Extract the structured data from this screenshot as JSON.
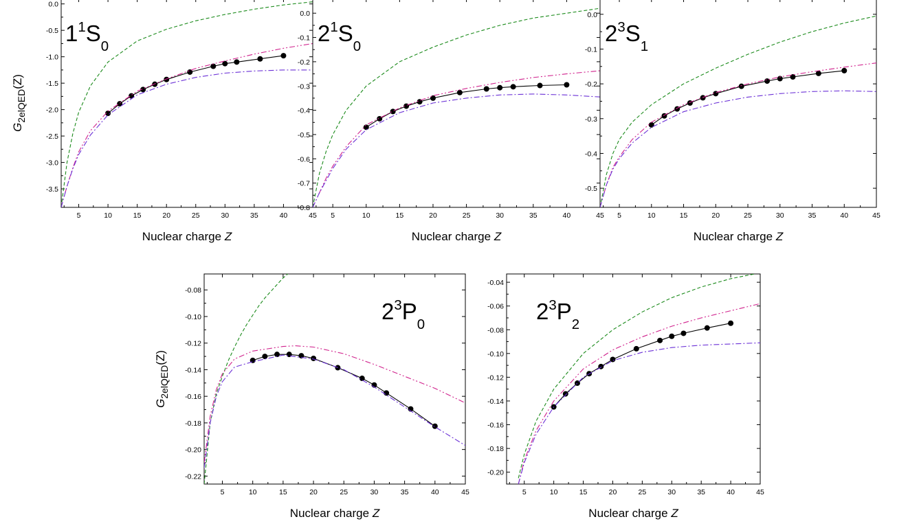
{
  "figure": {
    "xlabel_text": "Nuclear charge",
    "xlabel_var": "Z",
    "ylabel_sym": "G",
    "ylabel_sub": "2elQED",
    "ylabel_arg": "(Z)"
  },
  "chart_data": [
    {
      "type": "line",
      "state": {
        "lead": "1",
        "sup": "1",
        "letter": "S",
        "sub": "0"
      },
      "xlim": [
        2,
        45
      ],
      "ylim": [
        -3.85,
        0.1
      ],
      "xticks": [
        5,
        10,
        15,
        20,
        25,
        30,
        35,
        40,
        45
      ],
      "xtick_labels": [
        "5",
        "10",
        "15",
        "20",
        "25",
        "30",
        "35",
        "40",
        "45"
      ],
      "yticks": [
        0.0,
        -0.5,
        -1.0,
        -1.5,
        -2.0,
        -2.5,
        -3.0,
        -3.5
      ],
      "ytick_labels": [
        "0.0",
        "-0.5",
        "-1.0",
        "-1.5",
        "-2.0",
        "-2.5",
        "-3.0",
        "-3.5"
      ],
      "has_ylabel": true,
      "series": [
        {
          "style": "solid",
          "color": "#000000",
          "markers": true,
          "x": [
            10,
            12,
            14,
            16,
            18,
            20,
            24,
            28,
            30,
            32,
            36,
            40
          ],
          "y": [
            -2.07,
            -1.89,
            -1.74,
            -1.62,
            -1.52,
            -1.43,
            -1.29,
            -1.18,
            -1.13,
            -1.1,
            -1.04,
            -0.98
          ]
        },
        {
          "style": "dashed",
          "color": "#1a8a1a",
          "x": [
            2,
            3,
            4,
            5,
            7,
            10,
            15,
            20,
            25,
            30,
            35,
            40,
            45
          ],
          "y": [
            -3.85,
            -3.0,
            -2.45,
            -2.05,
            -1.55,
            -1.1,
            -0.7,
            -0.48,
            -0.32,
            -0.2,
            -0.1,
            -0.02,
            0.04
          ]
        },
        {
          "style": "dashdotdot",
          "color": "#d0208c",
          "x": [
            2,
            3,
            4,
            5,
            7,
            10,
            15,
            20,
            25,
            30,
            35,
            40,
            45
          ],
          "y": [
            -3.85,
            -3.45,
            -3.1,
            -2.8,
            -2.4,
            -2.03,
            -1.65,
            -1.42,
            -1.22,
            -1.08,
            -0.95,
            -0.84,
            -0.75
          ]
        },
        {
          "style": "dashdot",
          "color": "#6a2fd6",
          "x": [
            2,
            3,
            4,
            5,
            7,
            10,
            15,
            20,
            25,
            30,
            35,
            40,
            45
          ],
          "y": [
            -3.85,
            -3.45,
            -3.12,
            -2.85,
            -2.48,
            -2.1,
            -1.72,
            -1.52,
            -1.39,
            -1.31,
            -1.27,
            -1.25,
            -1.25
          ]
        }
      ]
    },
    {
      "type": "line",
      "state": {
        "lead": "2",
        "sup": "1",
        "letter": "S",
        "sub": "0"
      },
      "xlim": [
        2,
        45
      ],
      "ylim": [
        -0.8,
        0.06
      ],
      "xticks": [
        5,
        10,
        15,
        20,
        25,
        30,
        35,
        40,
        45
      ],
      "xtick_labels": [
        "5",
        "10",
        "15",
        "20",
        "25",
        "30",
        "35",
        "40",
        "45"
      ],
      "yticks": [
        0.0,
        -0.1,
        -0.2,
        -0.3,
        -0.4,
        -0.5,
        -0.6,
        -0.7,
        -0.8
      ],
      "ytick_labels": [
        "0.0",
        "-0.1",
        "-0.2",
        "-0.3",
        "-0.4",
        "-0.5",
        "-0.6",
        "-0.7",
        "-0.8"
      ],
      "has_ylabel": false,
      "series": [
        {
          "style": "solid",
          "color": "#000000",
          "markers": true,
          "x": [
            10,
            12,
            14,
            16,
            18,
            20,
            24,
            28,
            30,
            32,
            36,
            40
          ],
          "y": [
            -0.47,
            -0.435,
            -0.405,
            -0.383,
            -0.365,
            -0.35,
            -0.327,
            -0.312,
            -0.307,
            -0.303,
            -0.298,
            -0.295
          ]
        },
        {
          "style": "dashed",
          "color": "#1a8a1a",
          "x": [
            2,
            3,
            4,
            5,
            7,
            10,
            15,
            20,
            25,
            30,
            35,
            40,
            45
          ],
          "y": [
            -0.8,
            -0.66,
            -0.57,
            -0.5,
            -0.4,
            -0.3,
            -0.2,
            -0.14,
            -0.09,
            -0.05,
            -0.02,
            0.0,
            0.02
          ]
        },
        {
          "style": "dashdotdot",
          "color": "#d0208c",
          "x": [
            2,
            3,
            4,
            5,
            7,
            10,
            15,
            20,
            25,
            30,
            35,
            40,
            45
          ],
          "y": [
            -0.8,
            -0.74,
            -0.68,
            -0.63,
            -0.55,
            -0.46,
            -0.39,
            -0.34,
            -0.31,
            -0.285,
            -0.265,
            -0.25,
            -0.237
          ]
        },
        {
          "style": "dashdot",
          "color": "#6a2fd6",
          "x": [
            2,
            3,
            4,
            5,
            7,
            10,
            15,
            20,
            25,
            30,
            35,
            40,
            45
          ],
          "y": [
            -0.8,
            -0.74,
            -0.69,
            -0.64,
            -0.56,
            -0.48,
            -0.41,
            -0.37,
            -0.35,
            -0.337,
            -0.333,
            -0.337,
            -0.345
          ]
        }
      ]
    },
    {
      "type": "line",
      "state": {
        "lead": "2",
        "sup": "3",
        "letter": "S",
        "sub": "1"
      },
      "xlim": [
        2,
        45
      ],
      "ylim": [
        -0.555,
        0.045
      ],
      "xticks": [
        5,
        10,
        15,
        20,
        25,
        30,
        35,
        40,
        45
      ],
      "xtick_labels": [
        "5",
        "10",
        "15",
        "20",
        "25",
        "30",
        "35",
        "40",
        "45"
      ],
      "yticks": [
        0.0,
        -0.1,
        -0.2,
        -0.3,
        -0.4,
        -0.5
      ],
      "ytick_labels": [
        "0.0",
        "-0.1",
        "-0.2",
        "-0.3",
        "-0.4",
        "-0.5"
      ],
      "has_ylabel": false,
      "series": [
        {
          "style": "solid",
          "color": "#000000",
          "markers": true,
          "x": [
            10,
            12,
            14,
            16,
            18,
            20,
            24,
            28,
            30,
            32,
            36,
            40
          ],
          "y": [
            -0.318,
            -0.292,
            -0.272,
            -0.255,
            -0.24,
            -0.228,
            -0.207,
            -0.192,
            -0.185,
            -0.18,
            -0.17,
            -0.162
          ]
        },
        {
          "style": "dashed",
          "color": "#1a8a1a",
          "x": [
            2,
            3,
            4,
            5,
            7,
            10,
            15,
            20,
            25,
            30,
            35,
            40,
            45
          ],
          "y": [
            -0.555,
            -0.46,
            -0.4,
            -0.36,
            -0.31,
            -0.26,
            -0.2,
            -0.155,
            -0.115,
            -0.08,
            -0.05,
            -0.025,
            -0.005
          ]
        },
        {
          "style": "dashdotdot",
          "color": "#d0208c",
          "x": [
            2,
            3,
            4,
            5,
            7,
            10,
            15,
            20,
            25,
            30,
            35,
            40,
            45
          ],
          "y": [
            -0.555,
            -0.49,
            -0.44,
            -0.41,
            -0.36,
            -0.31,
            -0.26,
            -0.225,
            -0.2,
            -0.18,
            -0.165,
            -0.152,
            -0.14
          ]
        },
        {
          "style": "dashdot",
          "color": "#6a2fd6",
          "x": [
            2,
            3,
            4,
            5,
            7,
            10,
            15,
            20,
            25,
            30,
            35,
            40,
            45
          ],
          "y": [
            -0.555,
            -0.49,
            -0.445,
            -0.415,
            -0.37,
            -0.325,
            -0.28,
            -0.255,
            -0.238,
            -0.228,
            -0.222,
            -0.22,
            -0.222
          ]
        }
      ]
    },
    {
      "type": "line",
      "state": {
        "lead": "2",
        "sup": "3",
        "letter": "P",
        "sub": "0"
      },
      "xlim": [
        2,
        45
      ],
      "ylim": [
        -0.226,
        -0.068
      ],
      "xticks": [
        5,
        10,
        15,
        20,
        25,
        30,
        35,
        40,
        45
      ],
      "xtick_labels": [
        "5",
        "10",
        "15",
        "20",
        "25",
        "30",
        "35",
        "40",
        "45"
      ],
      "yticks": [
        -0.08,
        -0.1,
        -0.12,
        -0.14,
        -0.16,
        -0.18,
        -0.2,
        -0.22
      ],
      "ytick_labels": [
        "-0.08",
        "-0.10",
        "-0.12",
        "-0.14",
        "-0.16",
        "-0.18",
        "-0.20",
        "-0.22"
      ],
      "has_ylabel": true,
      "series": [
        {
          "style": "solid",
          "color": "#000000",
          "markers": true,
          "x": [
            10,
            12,
            14,
            16,
            18,
            20,
            24,
            28,
            30,
            32,
            36,
            40
          ],
          "y": [
            -0.133,
            -0.13,
            -0.1285,
            -0.1285,
            -0.1295,
            -0.1315,
            -0.1385,
            -0.1465,
            -0.1515,
            -0.1575,
            -0.1695,
            -0.1825
          ]
        },
        {
          "style": "dashed",
          "color": "#1a8a1a",
          "x": [
            2,
            3,
            4,
            5,
            6,
            7,
            8,
            9,
            10,
            11,
            12,
            13,
            14,
            15,
            16
          ],
          "y": [
            -0.226,
            -0.18,
            -0.158,
            -0.145,
            -0.133,
            -0.123,
            -0.114,
            -0.106,
            -0.099,
            -0.092,
            -0.086,
            -0.081,
            -0.076,
            -0.071,
            -0.067
          ]
        },
        {
          "style": "dashdotdot",
          "color": "#d0208c",
          "x": [
            2,
            3,
            4,
            5,
            7,
            10,
            15,
            17,
            20,
            25,
            30,
            35,
            40,
            45
          ],
          "y": [
            -0.21,
            -0.175,
            -0.155,
            -0.143,
            -0.132,
            -0.126,
            -0.1225,
            -0.122,
            -0.123,
            -0.128,
            -0.136,
            -0.145,
            -0.154,
            -0.165
          ]
        },
        {
          "style": "dashdot",
          "color": "#6a2fd6",
          "x": [
            2,
            3,
            4,
            5,
            7,
            10,
            15,
            20,
            25,
            30,
            35,
            40,
            45
          ],
          "y": [
            -0.214,
            -0.18,
            -0.16,
            -0.149,
            -0.138,
            -0.134,
            -0.129,
            -0.132,
            -0.14,
            -0.153,
            -0.168,
            -0.183,
            -0.197
          ]
        }
      ]
    },
    {
      "type": "line",
      "state": {
        "lead": "2",
        "sup": "3",
        "letter": "P",
        "sub": "2"
      },
      "xlim": [
        2,
        45
      ],
      "ylim": [
        -0.21,
        -0.033
      ],
      "xticks": [
        5,
        10,
        15,
        20,
        25,
        30,
        35,
        40,
        45
      ],
      "xtick_labels": [
        "5",
        "10",
        "15",
        "20",
        "25",
        "30",
        "35",
        "40",
        "45"
      ],
      "yticks": [
        -0.04,
        -0.06,
        -0.08,
        -0.1,
        -0.12,
        -0.14,
        -0.16,
        -0.18,
        -0.2
      ],
      "ytick_labels": [
        "-0.04",
        "-0.06",
        "-0.08",
        "-0.10",
        "-0.12",
        "-0.14",
        "-0.16",
        "-0.18",
        "-0.20"
      ],
      "has_ylabel": false,
      "series": [
        {
          "style": "solid",
          "color": "#000000",
          "markers": true,
          "x": [
            10,
            12,
            14,
            16,
            18,
            20,
            24,
            28,
            30,
            32,
            36,
            40
          ],
          "y": [
            -0.145,
            -0.134,
            -0.125,
            -0.117,
            -0.111,
            -0.105,
            -0.096,
            -0.089,
            -0.0855,
            -0.083,
            -0.0785,
            -0.0745
          ]
        },
        {
          "style": "dashed",
          "color": "#1a8a1a",
          "x": [
            4,
            5,
            7,
            10,
            15,
            20,
            25,
            30,
            35,
            40,
            45
          ],
          "y": [
            -0.205,
            -0.185,
            -0.157,
            -0.13,
            -0.1,
            -0.08,
            -0.065,
            -0.053,
            -0.044,
            -0.037,
            -0.032
          ]
        },
        {
          "style": "dashdotdot",
          "color": "#d0208c",
          "x": [
            4,
            5,
            7,
            10,
            15,
            20,
            25,
            30,
            35,
            40,
            45
          ],
          "y": [
            -0.21,
            -0.19,
            -0.165,
            -0.14,
            -0.113,
            -0.097,
            -0.086,
            -0.077,
            -0.07,
            -0.064,
            -0.058
          ]
        },
        {
          "style": "dashdot",
          "color": "#6a2fd6",
          "x": [
            4,
            5,
            7,
            10,
            15,
            20,
            25,
            30,
            35,
            40,
            45
          ],
          "y": [
            -0.21,
            -0.192,
            -0.168,
            -0.145,
            -0.12,
            -0.106,
            -0.099,
            -0.095,
            -0.093,
            -0.092,
            -0.091
          ]
        }
      ]
    }
  ]
}
